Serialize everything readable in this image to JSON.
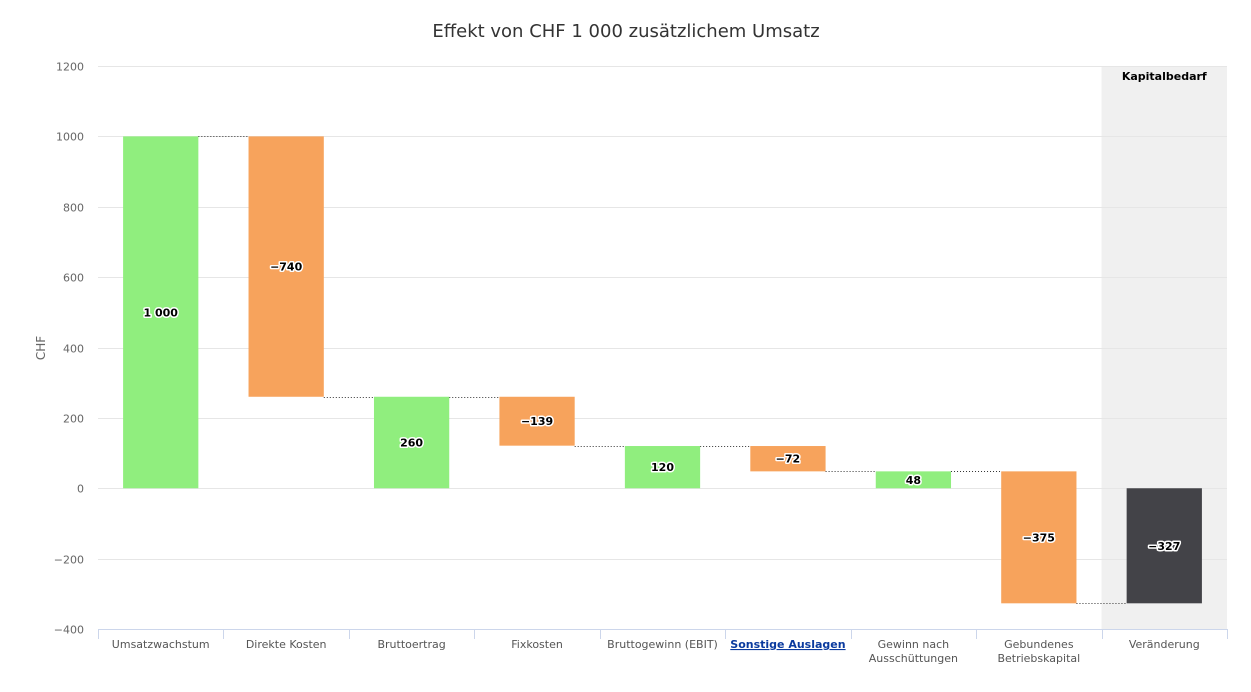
{
  "chart_data": {
    "type": "waterfall",
    "title": "Effekt von CHF 1 000 zusätzlichem Umsatz",
    "ylabel": "CHF",
    "xlabel": "",
    "ylim": [
      -400,
      1200
    ],
    "yticks": [
      -400,
      -200,
      0,
      200,
      400,
      600,
      800,
      1000,
      1200
    ],
    "grid": true,
    "band": {
      "label": "Kapitalbedarf",
      "from_category_index": 8,
      "to_category_index": 8,
      "color": "#f0f0f0"
    },
    "colors": {
      "positive": "#90ee7e",
      "negative": "#f7a35c",
      "total": "#434348",
      "connector": "#333333",
      "grid": "#e6e6e6"
    },
    "bars": [
      {
        "category": "Umsatzwachstum",
        "start": 0,
        "end": 1000,
        "label": "1 000",
        "kind": "positive"
      },
      {
        "category": "Direkte Kosten",
        "start": 1000,
        "end": 260,
        "label": "−740",
        "kind": "negative"
      },
      {
        "category": "Bruttoertrag",
        "start": 0,
        "end": 260,
        "label": "260",
        "kind": "positive"
      },
      {
        "category": "Fixkosten",
        "start": 260,
        "end": 121,
        "label": "−139",
        "kind": "negative"
      },
      {
        "category": "Bruttogewinn (EBIT)",
        "start": 0,
        "end": 120,
        "label": "120",
        "kind": "positive"
      },
      {
        "category": "Sonstige Auslagen",
        "start": 120,
        "end": 48,
        "label": "−72",
        "kind": "negative",
        "link": true
      },
      {
        "category": "Gewinn nach Ausschüttungen",
        "start": 0,
        "end": 48,
        "label": "48",
        "kind": "positive"
      },
      {
        "category": "Gebundenes Betriebskapital",
        "start": 48,
        "end": -327,
        "label": "−375",
        "kind": "negative"
      },
      {
        "category": "Veränderung",
        "start": 0,
        "end": -327,
        "label": "−327",
        "kind": "total"
      }
    ],
    "category_lines": [
      [
        "Umsatzwachstum"
      ],
      [
        "Direkte Kosten"
      ],
      [
        "Bruttoertrag"
      ],
      [
        "Fixkosten"
      ],
      [
        "Bruttogewinn (EBIT)"
      ],
      [
        "Sonstige Auslagen"
      ],
      [
        "Gewinn nach",
        "Ausschüttungen"
      ],
      [
        "Gebundenes",
        "Betriebskapital"
      ],
      [
        "Veränderung"
      ]
    ]
  }
}
